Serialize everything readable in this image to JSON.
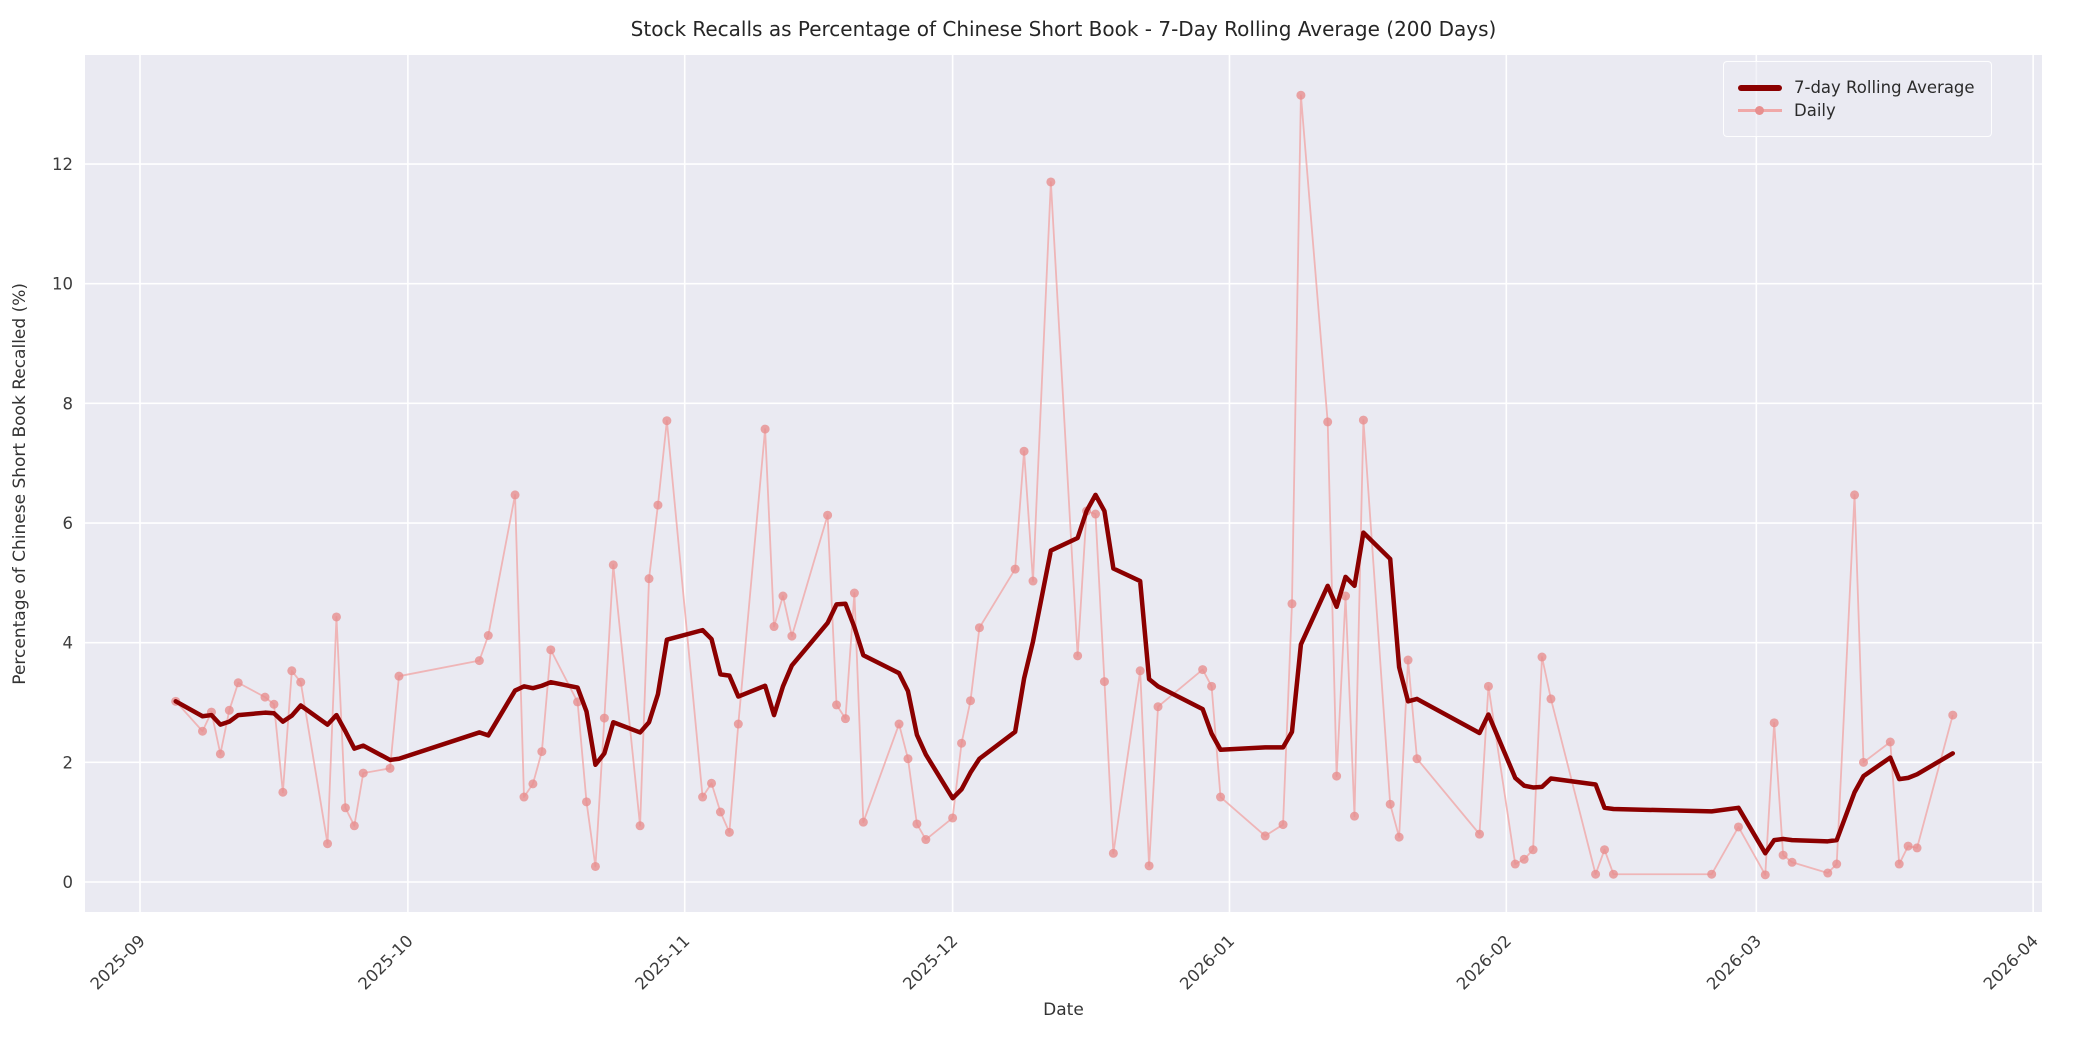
{
  "figure": {
    "title": "Stock Recalls as Percentage of Chinese Short Book - 7-Day Rolling Average (200 Days)",
    "background_color": "#ffffff",
    "plot_background_color": "#eaeaf2",
    "grid_color": "#ffffff"
  },
  "chart_data": {
    "type": "line",
    "title": "Stock Recalls as Percentage of Chinese Short Book - 7-Day Rolling Average (200 Days)",
    "xlabel": "Date",
    "ylabel": "Percentage of Chinese Short Book Recalled (%)",
    "x_tick_labels": [
      "2025-09",
      "2025-10",
      "2025-11",
      "2025-12",
      "2026-01",
      "2026-02",
      "2026-03",
      "2026-04"
    ],
    "y_tick_labels": [
      0,
      2,
      4,
      6,
      8,
      10,
      12
    ],
    "ylim": [
      -0.5,
      13.8
    ],
    "grid": true,
    "legend_position": "upper right",
    "dates": [
      "2025-09-05",
      "2025-09-08",
      "2025-09-09",
      "2025-09-10",
      "2025-09-11",
      "2025-09-12",
      "2025-09-15",
      "2025-09-16",
      "2025-09-17",
      "2025-09-18",
      "2025-09-19",
      "2025-09-22",
      "2025-09-23",
      "2025-09-24",
      "2025-09-25",
      "2025-09-26",
      "2025-09-29",
      "2025-09-30",
      "2025-10-09",
      "2025-10-10",
      "2025-10-13",
      "2025-10-14",
      "2025-10-15",
      "2025-10-16",
      "2025-10-17",
      "2025-10-20",
      "2025-10-21",
      "2025-10-22",
      "2025-10-23",
      "2025-10-24",
      "2025-10-27",
      "2025-10-28",
      "2025-10-29",
      "2025-10-30",
      "2025-11-03",
      "2025-11-04",
      "2025-11-05",
      "2025-11-06",
      "2025-11-07",
      "2025-11-10",
      "2025-11-11",
      "2025-11-12",
      "2025-11-13",
      "2025-11-17",
      "2025-11-18",
      "2025-11-19",
      "2025-11-20",
      "2025-11-21",
      "2025-11-25",
      "2025-11-26",
      "2025-11-27",
      "2025-11-28",
      "2025-12-01",
      "2025-12-02",
      "2025-12-03",
      "2025-12-04",
      "2025-12-08",
      "2025-12-09",
      "2025-12-10",
      "2025-12-12",
      "2025-12-15",
      "2025-12-16",
      "2025-12-17",
      "2025-12-18",
      "2025-12-19",
      "2025-12-22",
      "2025-12-23",
      "2025-12-24",
      "2025-12-29",
      "2025-12-30",
      "2025-12-31",
      "2026-01-05",
      "2026-01-07",
      "2026-01-08",
      "2026-01-09",
      "2026-01-12",
      "2026-01-13",
      "2026-01-14",
      "2026-01-15",
      "2026-01-16",
      "2026-01-19",
      "2026-01-20",
      "2026-01-21",
      "2026-01-22",
      "2026-01-29",
      "2026-01-30",
      "2026-02-02",
      "2026-02-03",
      "2026-02-04",
      "2026-02-05",
      "2026-02-06",
      "2026-02-11",
      "2026-02-12",
      "2026-02-13",
      "2026-02-24",
      "2026-02-27",
      "2026-03-02",
      "2026-03-03",
      "2026-03-04",
      "2026-03-05",
      "2026-03-09",
      "2026-03-10",
      "2026-03-12",
      "2026-03-13",
      "2026-03-16",
      "2026-03-17",
      "2026-03-18",
      "2026-03-19",
      "2026-03-23"
    ],
    "series": [
      {
        "name": "7-day Rolling Average",
        "color": "#8b0000",
        "line_width": 4.5,
        "values": [
          3.02,
          2.77,
          2.79,
          2.63,
          2.68,
          2.79,
          2.83,
          2.82,
          2.68,
          2.78,
          2.95,
          2.63,
          2.79,
          2.52,
          2.23,
          2.28,
          2.04,
          2.06,
          2.5,
          2.45,
          3.2,
          3.27,
          3.24,
          3.28,
          3.34,
          3.25,
          2.85,
          1.96,
          2.15,
          2.67,
          2.5,
          2.67,
          3.14,
          4.05,
          4.21,
          4.06,
          3.47,
          3.45,
          3.1,
          3.28,
          2.79,
          3.27,
          3.62,
          4.33,
          4.64,
          4.65,
          4.26,
          3.79,
          3.49,
          3.19,
          2.46,
          2.13,
          1.4,
          1.55,
          1.83,
          2.06,
          2.51,
          3.4,
          4.02,
          5.54,
          5.75,
          6.2,
          6.47,
          6.2,
          5.24,
          5.03,
          3.39,
          3.27,
          2.89,
          2.48,
          2.21,
          2.25,
          2.25,
          2.51,
          3.97,
          4.95,
          4.6,
          5.1,
          4.95,
          5.84,
          5.4,
          3.59,
          3.02,
          3.06,
          2.49,
          2.8,
          1.74,
          1.61,
          1.58,
          1.59,
          1.73,
          1.63,
          1.24,
          1.22,
          1.18,
          1.24,
          0.48,
          0.7,
          0.72,
          0.7,
          0.68,
          0.7,
          1.5,
          1.77,
          2.08,
          1.72,
          1.74,
          1.8,
          2.15
        ]
      },
      {
        "name": "Daily",
        "color": "#e78f8f",
        "line_color": "#f0a8a8",
        "line_width": 1.8,
        "marker_radius": 4.5,
        "values": [
          3.02,
          2.52,
          2.84,
          2.14,
          2.87,
          3.33,
          3.09,
          2.97,
          1.5,
          3.53,
          3.34,
          0.64,
          4.43,
          1.24,
          0.94,
          1.82,
          1.9,
          3.44,
          3.7,
          4.12,
          6.47,
          1.42,
          1.64,
          2.18,
          3.88,
          3.01,
          1.34,
          0.26,
          2.74,
          5.3,
          0.94,
          5.07,
          6.3,
          7.71,
          1.42,
          1.65,
          1.17,
          0.83,
          2.64,
          7.57,
          4.27,
          4.78,
          4.11,
          6.13,
          2.96,
          2.73,
          4.83,
          1.0,
          2.64,
          2.06,
          0.97,
          0.71,
          1.07,
          2.32,
          3.03,
          4.25,
          5.23,
          7.2,
          5.03,
          11.7,
          3.78,
          6.2,
          6.15,
          3.35,
          0.48,
          3.53,
          0.27,
          2.93,
          3.55,
          3.27,
          1.42,
          0.77,
          0.96,
          4.65,
          13.15,
          7.69,
          1.77,
          4.78,
          1.1,
          7.72,
          1.3,
          0.75,
          3.71,
          2.06,
          0.8,
          3.27,
          0.3,
          0.38,
          0.54,
          3.76,
          3.06,
          0.13,
          0.54,
          0.13,
          0.13,
          0.92,
          0.12,
          2.66,
          0.45,
          0.33,
          0.15,
          0.3,
          6.47,
          2.0,
          2.34,
          0.3,
          0.6,
          0.57,
          2.79
        ]
      }
    ]
  }
}
